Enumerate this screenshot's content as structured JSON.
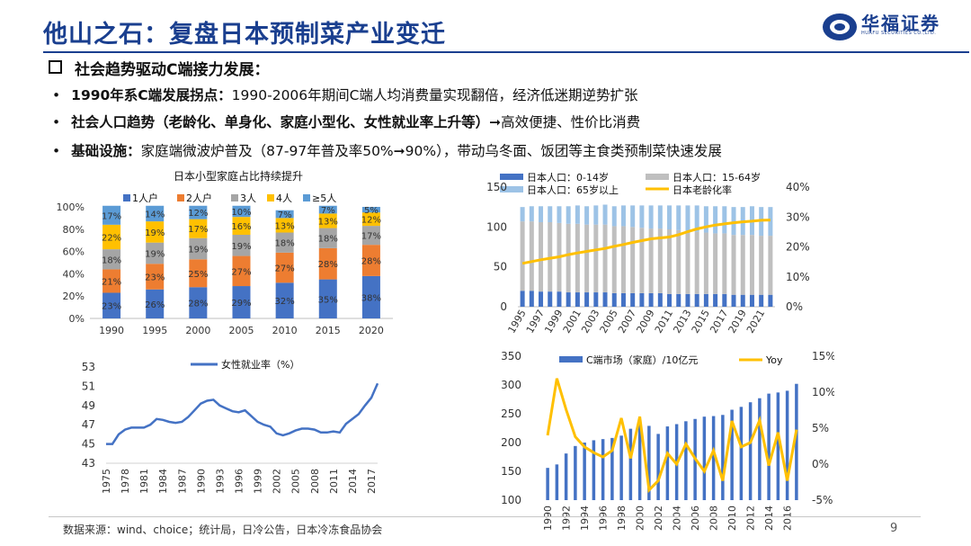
{
  "header": {
    "title": "他山之石：复盘日本预制菜产业变迁",
    "logo_text": "华福证券",
    "logo_sub": "HUAFU SECURITIES CO.,LTD."
  },
  "section_heading": "社会趋势驱动C端接力发展：",
  "bullets": [
    {
      "bold": "1990年系C端发展拐点：",
      "text": "1990-2006年期间C端人均消费量实现翻倍，经济低迷期逆势扩张"
    },
    {
      "bold": "社会人口趋势（老龄化、单身化、家庭小型化、女性就业率上升等）",
      "text": "➞高效便捷、性价比消费"
    },
    {
      "bold": "基础设施：",
      "text": "家庭端微波炉普及（87-97年普及率50%➞90%），带动乌冬面、饭团等主食类预制菜快速发展"
    }
  ],
  "footer": {
    "source": "数据来源：wind、choice；统计局，日冷公告，日本冷冻食品协会",
    "page": "9"
  },
  "colors": {
    "blue": "#4472C4",
    "orange": "#ED7D31",
    "gray": "#A5A5A5",
    "yellow": "#FFC000",
    "lightblue": "#5B9BD5",
    "navy": "#1a3f8f",
    "paleblue": "#9DC3E6"
  },
  "chart_data": [
    {
      "type": "bar",
      "stacked": true,
      "title": "日本小型家庭占比持续提升",
      "categories": [
        "1990",
        "1995",
        "2000",
        "2005",
        "2010",
        "2015",
        "2020"
      ],
      "series": [
        {
          "name": "1人户",
          "values": [
            23,
            26,
            28,
            29,
            32,
            35,
            38
          ]
        },
        {
          "name": "2人户",
          "values": [
            21,
            23,
            25,
            27,
            27,
            28,
            28
          ]
        },
        {
          "name": "3人",
          "values": [
            18,
            19,
            19,
            19,
            18,
            18,
            17
          ]
        },
        {
          "name": "4人",
          "values": [
            22,
            19,
            17,
            16,
            13,
            13,
            12
          ]
        },
        {
          "name": "≥5人",
          "values": [
            17,
            14,
            12,
            10,
            7,
            7,
            5
          ]
        }
      ],
      "labels": [
        [
          "23%",
          "26%",
          "28%",
          "29%",
          "32%",
          "35%",
          "38%"
        ],
        [
          "21%",
          "23%",
          "25%",
          "27%",
          "27%",
          "28%",
          "28%"
        ],
        [
          "18%",
          "19%",
          "19%",
          "19%",
          "18%",
          "18%",
          "17%"
        ],
        [
          "22%",
          "19%",
          "17%",
          "16%",
          "13%",
          "13%",
          "12%"
        ],
        [
          "17%",
          "14%",
          "12%",
          "10%",
          "7%",
          "7%",
          "5%"
        ]
      ],
      "ylim": [
        0,
        100
      ],
      "yticks": [
        "0%",
        "20%",
        "40%",
        "60%",
        "80%",
        "100%"
      ]
    },
    {
      "type": "line",
      "title": "",
      "series_name": "女性就业率（%）",
      "x": [
        1975,
        1976,
        1977,
        1978,
        1979,
        1980,
        1981,
        1982,
        1983,
        1984,
        1985,
        1986,
        1987,
        1988,
        1989,
        1990,
        1991,
        1992,
        1993,
        1994,
        1995,
        1996,
        1997,
        1998,
        1999,
        2000,
        2001,
        2002,
        2003,
        2004,
        2005,
        2006,
        2007,
        2008,
        2009,
        2010,
        2011,
        2012,
        2013,
        2014,
        2015,
        2016,
        2017,
        2018
      ],
      "values": [
        45.0,
        45.0,
        46.0,
        46.5,
        46.7,
        46.7,
        46.7,
        47.0,
        47.6,
        47.5,
        47.3,
        47.2,
        47.3,
        47.8,
        48.5,
        49.2,
        49.5,
        49.6,
        49.0,
        48.7,
        48.4,
        48.3,
        48.5,
        47.9,
        47.3,
        47.0,
        46.8,
        46.1,
        45.9,
        46.1,
        46.4,
        46.6,
        46.6,
        46.5,
        46.2,
        46.2,
        46.3,
        46.2,
        47.1,
        47.6,
        48.1,
        49.0,
        49.8,
        51.3
      ],
      "xticks": [
        "1975",
        "1978",
        "1981",
        "1984",
        "1987",
        "1990",
        "1993",
        "1996",
        "1999",
        "2002",
        "2005",
        "2008",
        "2011",
        "2014",
        "2017"
      ],
      "ylim": [
        43,
        53
      ],
      "yticks": [
        "43",
        "45",
        "47",
        "49",
        "51",
        "53"
      ]
    },
    {
      "type": "bar+line",
      "title": "",
      "categories": [
        "1995",
        "1996",
        "1997",
        "1998",
        "1999",
        "2000",
        "2001",
        "2002",
        "2003",
        "2004",
        "2005",
        "2006",
        "2007",
        "2008",
        "2009",
        "2010",
        "2011",
        "2012",
        "2013",
        "2014",
        "2015",
        "2016",
        "2017",
        "2018",
        "2019",
        "2020",
        "2021",
        "2022"
      ],
      "series": [
        {
          "name": "日本人口：0-14岁",
          "values": [
            20,
            20,
            19,
            19,
            19,
            18,
            18,
            18,
            18,
            18,
            17,
            17,
            17,
            17,
            17,
            17,
            16,
            16,
            16,
            16,
            16,
            16,
            16,
            15,
            15,
            15,
            15,
            15
          ]
        },
        {
          "name": "日本人口：15-64岁",
          "values": [
            87,
            87,
            87,
            87,
            86,
            86,
            86,
            85,
            85,
            85,
            84,
            84,
            83,
            82,
            81,
            81,
            81,
            80,
            79,
            78,
            77,
            76,
            76,
            75,
            75,
            75,
            74,
            74
          ]
        },
        {
          "name": "日本人口：65岁以上",
          "values": [
            18,
            19,
            20,
            20,
            21,
            22,
            23,
            23,
            24,
            25,
            25,
            26,
            27,
            28,
            29,
            29,
            30,
            31,
            32,
            33,
            33,
            34,
            34,
            35,
            35,
            36,
            36,
            36
          ]
        },
        {
          "name": "日本老龄化率",
          "axis": "right",
          "values": [
            14.5,
            15.1,
            15.7,
            16.2,
            16.7,
            17.4,
            18.0,
            18.5,
            19.0,
            19.5,
            20.2,
            20.8,
            21.5,
            22.1,
            22.7,
            23.0,
            23.3,
            24.1,
            25.1,
            26.0,
            26.7,
            27.3,
            27.7,
            28.1,
            28.4,
            28.6,
            28.9,
            29.0
          ]
        }
      ],
      "xticks": [
        "1995",
        "1997",
        "1999",
        "2001",
        "2003",
        "2005",
        "2007",
        "2009",
        "2011",
        "2013",
        "2015",
        "2017",
        "2019",
        "2021"
      ],
      "ylim": [
        0,
        150
      ],
      "yticks": [
        "0",
        "50",
        "100",
        "150"
      ],
      "y2lim": [
        0,
        40
      ],
      "y2ticks": [
        "0%",
        "10%",
        "20%",
        "30%",
        "40%"
      ]
    },
    {
      "type": "bar+line",
      "title": "",
      "categories": [
        "1990",
        "1991",
        "1992",
        "1993",
        "1994",
        "1995",
        "1996",
        "1997",
        "1998",
        "1999",
        "2000",
        "2001",
        "2002",
        "2003",
        "2004",
        "2005",
        "2006",
        "2007",
        "2008",
        "2009",
        "2010",
        "2011",
        "2012",
        "2013",
        "2014",
        "2015",
        "2016",
        "2017"
      ],
      "series": [
        {
          "name": "C端市场（家庭）/10亿元",
          "values": [
            156,
            162,
            181,
            194,
            200,
            204,
            206,
            208,
            212,
            224,
            232,
            229,
            215,
            228,
            232,
            237,
            241,
            245,
            246,
            248,
            257,
            262,
            270,
            277,
            285,
            287,
            290,
            302
          ]
        },
        {
          "name": "Yoy",
          "axis": "right",
          "values": [
            4.0,
            11.9,
            7.6,
            3.8,
            2.4,
            1.6,
            1.0,
            1.9,
            6.4,
            0.8,
            6.6,
            -3.6,
            -2.3,
            1.5,
            0.0,
            2.8,
            0.8,
            -1.0,
            1.9,
            -2.3,
            6.0,
            2.4,
            3.0,
            6.1,
            -0.2,
            4.4,
            -2.3,
            4.8
          ]
        }
      ],
      "xticks": [
        "1990",
        "1992",
        "1994",
        "1996",
        "1998",
        "2000",
        "2002",
        "2004",
        "2006",
        "2008",
        "2010",
        "2012",
        "2014",
        "2016"
      ],
      "ylim": [
        100,
        350
      ],
      "yticks": [
        "100",
        "150",
        "200",
        "250",
        "300",
        "350"
      ],
      "y2lim": [
        -5,
        15
      ],
      "y2ticks": [
        "-5%",
        "0%",
        "5%",
        "10%",
        "15%"
      ]
    }
  ]
}
